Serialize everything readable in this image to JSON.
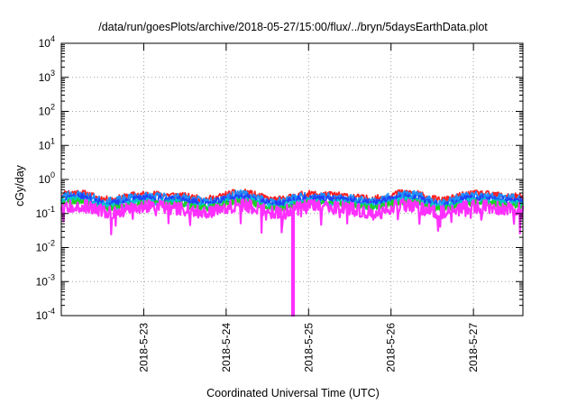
{
  "chart_data": {
    "type": "line",
    "title": "/data/run/goesPlots/archive/2018-05-27/15:00/flux/../bryn/5daysEarthData.plot",
    "xlabel": "Coordinated Universal Time (UTC)",
    "ylabel": "cGy/day",
    "yscale": "log",
    "ylim": [
      0.0001,
      10000
    ],
    "xlim": [
      0.0,
      5.6
    ],
    "grid": true,
    "y_ticks": [
      {
        "value": 0.0001,
        "base": "10",
        "exp": "-4"
      },
      {
        "value": 0.001,
        "base": "10",
        "exp": "-3"
      },
      {
        "value": 0.01,
        "base": "10",
        "exp": "-2"
      },
      {
        "value": 0.1,
        "base": "10",
        "exp": "-1"
      },
      {
        "value": 1,
        "base": "10",
        "exp": "0"
      },
      {
        "value": 10,
        "base": "10",
        "exp": "1"
      },
      {
        "value": 100,
        "base": "10",
        "exp": "2"
      },
      {
        "value": 1000,
        "base": "10",
        "exp": "3"
      },
      {
        "value": 10000,
        "base": "10",
        "exp": "4"
      }
    ],
    "x_ticks": [
      {
        "value": 1.0,
        "label": "2018-5-23"
      },
      {
        "value": 2.0,
        "label": "2018-5-24"
      },
      {
        "value": 3.0,
        "label": "2018-5-25"
      },
      {
        "value": 4.0,
        "label": "2018-5-26"
      },
      {
        "value": 5.0,
        "label": "2018-5-27"
      }
    ],
    "series": [
      {
        "color": "#ff2020",
        "level": 0.33,
        "spread": 0.1,
        "seed": 11
      },
      {
        "color": "#1e90ff",
        "level": 0.28,
        "spread": 0.14,
        "seed": 23
      },
      {
        "color": "#2040ff",
        "level": 0.24,
        "spread": 0.12,
        "seed": 37
      },
      {
        "color": "#00c8c8",
        "level": 0.2,
        "spread": 0.1,
        "seed": 41
      },
      {
        "color": "#20d020",
        "level": 0.18,
        "spread": 0.09,
        "seed": 53
      },
      {
        "color": "#ff30ff",
        "level": 0.14,
        "spread": 0.2,
        "seed": 67,
        "dip": {
          "x": 2.8,
          "value": 0.0001
        }
      }
    ]
  }
}
